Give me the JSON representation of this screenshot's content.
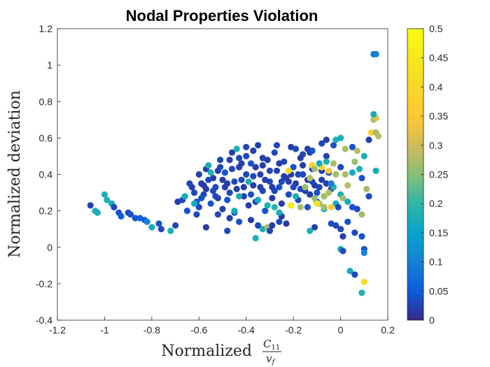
{
  "chart_data": {
    "type": "scatter",
    "title": "Nodal Properties Violation",
    "xlabel": "Normalized",
    "xlabel_fraction": {
      "numerator": "C",
      "numerator_sub": "11",
      "denominator": "v",
      "denominator_sub": "f"
    },
    "ylabel": "Normalized deviation",
    "xlim": [
      -1.2,
      0.2
    ],
    "ylim": [
      -0.4,
      1.2
    ],
    "xticks": [
      -1.2,
      -1,
      -0.8,
      -0.6,
      -0.4,
      -0.2,
      0,
      0.2
    ],
    "xtick_labels": [
      "-1.2",
      "-1",
      "-0.8",
      "-0.6",
      "-0.4",
      "-0.2",
      "0",
      "0.2"
    ],
    "yticks": [
      -0.4,
      -0.2,
      0,
      0.2,
      0.4,
      0.6,
      0.8,
      1,
      1.2
    ],
    "ytick_labels": [
      "-0.4",
      "-0.2",
      "0",
      "0.2",
      "0.4",
      "0.6",
      "0.8",
      "1",
      "1.2"
    ],
    "grid": false,
    "colorbar": {
      "range": [
        0,
        0.5
      ],
      "ticks": [
        0,
        0.05,
        0.1,
        0.15,
        0.2,
        0.25,
        0.3,
        0.35,
        0.4,
        0.45,
        0.5
      ],
      "tick_labels": [
        "0",
        "0.05",
        "0.1",
        "0.15",
        "0.2",
        "0.25",
        "0.3",
        "0.35",
        "0.4",
        "0.45",
        "0.5"
      ],
      "colormap": "parula"
    },
    "points": [
      [
        -1.06,
        0.23,
        0.02
      ],
      [
        -1.04,
        0.2,
        0.18
      ],
      [
        -1.03,
        0.19,
        0.17
      ],
      [
        -1.0,
        0.29,
        0.18
      ],
      [
        -0.99,
        0.26,
        0.18
      ],
      [
        -0.97,
        0.24,
        0.17
      ],
      [
        -0.96,
        0.22,
        0.03
      ],
      [
        -0.94,
        0.19,
        0.04
      ],
      [
        -0.93,
        0.17,
        0.05
      ],
      [
        -0.9,
        0.19,
        0.03
      ],
      [
        -0.89,
        0.18,
        0.04
      ],
      [
        -0.87,
        0.16,
        0.04
      ],
      [
        -0.85,
        0.16,
        0.06
      ],
      [
        -0.83,
        0.15,
        0.05
      ],
      [
        -0.82,
        0.14,
        0.1
      ],
      [
        -0.8,
        0.11,
        0.17
      ],
      [
        -0.77,
        0.13,
        0.04
      ],
      [
        -0.76,
        0.1,
        0.03
      ],
      [
        -0.72,
        0.09,
        0.18
      ],
      [
        -0.7,
        0.12,
        0.03
      ],
      [
        -0.69,
        0.25,
        0.02
      ],
      [
        -0.67,
        0.26,
        0.03
      ],
      [
        -0.66,
        0.28,
        0.17
      ],
      [
        -0.63,
        0.33,
        0.02
      ],
      [
        -0.62,
        0.3,
        0.03
      ],
      [
        -0.61,
        0.25,
        0.04
      ],
      [
        -0.6,
        0.22,
        0.03
      ],
      [
        -0.59,
        0.35,
        0.02
      ],
      [
        -0.58,
        0.29,
        0.03
      ],
      [
        -0.57,
        0.43,
        0.02
      ],
      [
        -0.56,
        0.45,
        0.18
      ],
      [
        -0.55,
        0.24,
        0.04
      ],
      [
        -0.54,
        0.38,
        0.02
      ],
      [
        -0.53,
        0.33,
        0.03
      ],
      [
        -0.52,
        0.27,
        0.02
      ],
      [
        -0.51,
        0.48,
        0.03
      ],
      [
        -0.5,
        0.21,
        0.02
      ],
      [
        -0.49,
        0.41,
        0.04
      ],
      [
        -0.48,
        0.35,
        0.02
      ],
      [
        -0.47,
        0.3,
        0.03
      ],
      [
        -0.46,
        0.52,
        0.02
      ],
      [
        -0.45,
        0.19,
        0.04
      ],
      [
        -0.44,
        0.54,
        0.18
      ],
      [
        -0.43,
        0.44,
        0.02
      ],
      [
        -0.42,
        0.37,
        0.03
      ],
      [
        -0.41,
        0.28,
        0.02
      ],
      [
        -0.4,
        0.5,
        0.03
      ],
      [
        -0.39,
        0.23,
        0.02
      ],
      [
        -0.38,
        0.46,
        0.04
      ],
      [
        -0.37,
        0.34,
        0.02
      ],
      [
        -0.36,
        0.25,
        0.03
      ],
      [
        -0.35,
        0.56,
        0.02
      ],
      [
        -0.34,
        0.4,
        0.02
      ],
      [
        -0.33,
        0.31,
        0.03
      ],
      [
        -0.32,
        0.2,
        0.04
      ],
      [
        -0.31,
        0.48,
        0.02
      ],
      [
        -0.3,
        0.36,
        0.03
      ],
      [
        -0.29,
        0.27,
        0.02
      ],
      [
        -0.28,
        0.52,
        0.03
      ],
      [
        -0.27,
        0.42,
        0.02
      ],
      [
        -0.26,
        0.33,
        0.04
      ],
      [
        -0.25,
        0.24,
        0.02
      ],
      [
        -0.24,
        0.47,
        0.03
      ],
      [
        -0.23,
        0.38,
        0.02
      ],
      [
        -0.22,
        0.29,
        0.03
      ],
      [
        -0.21,
        0.55,
        0.02
      ],
      [
        -0.2,
        0.44,
        0.04
      ],
      [
        -0.19,
        0.35,
        0.02
      ],
      [
        -0.18,
        0.26,
        0.03
      ],
      [
        -0.17,
        0.49,
        0.02
      ],
      [
        -0.16,
        0.4,
        0.03
      ],
      [
        -0.15,
        0.31,
        0.02
      ],
      [
        -0.14,
        0.22,
        0.04
      ],
      [
        -0.13,
        0.52,
        0.02
      ],
      [
        -0.12,
        0.43,
        0.03
      ],
      [
        -0.11,
        0.34,
        0.02
      ],
      [
        -0.1,
        0.25,
        0.03
      ],
      [
        -0.09,
        0.46,
        0.04
      ],
      [
        -0.08,
        0.37,
        0.02
      ],
      [
        -0.07,
        0.28,
        0.03
      ],
      [
        -0.06,
        0.5,
        0.02
      ],
      [
        -0.05,
        0.41,
        0.03
      ],
      [
        -0.04,
        0.32,
        0.02
      ],
      [
        -0.6,
        0.4,
        0.02
      ],
      [
        -0.56,
        0.37,
        0.03
      ],
      [
        -0.52,
        0.42,
        0.02
      ],
      [
        -0.48,
        0.26,
        0.04
      ],
      [
        -0.44,
        0.32,
        0.02
      ],
      [
        -0.4,
        0.4,
        0.03
      ],
      [
        -0.36,
        0.44,
        0.02
      ],
      [
        -0.32,
        0.37,
        0.02
      ],
      [
        -0.28,
        0.31,
        0.03
      ],
      [
        -0.24,
        0.39,
        0.02
      ],
      [
        -0.2,
        0.33,
        0.03
      ],
      [
        -0.16,
        0.45,
        0.02
      ],
      [
        -0.12,
        0.36,
        0.03
      ],
      [
        -0.08,
        0.42,
        0.02
      ],
      [
        -0.58,
        0.34,
        0.02
      ],
      [
        -0.54,
        0.31,
        0.03
      ],
      [
        -0.5,
        0.37,
        0.02
      ],
      [
        -0.46,
        0.43,
        0.03
      ],
      [
        -0.42,
        0.46,
        0.02
      ],
      [
        -0.38,
        0.29,
        0.04
      ],
      [
        -0.34,
        0.33,
        0.02
      ],
      [
        -0.3,
        0.42,
        0.03
      ],
      [
        -0.26,
        0.46,
        0.02
      ],
      [
        -0.22,
        0.36,
        0.02
      ],
      [
        -0.18,
        0.4,
        0.03
      ],
      [
        -0.14,
        0.37,
        0.02
      ],
      [
        -0.1,
        0.3,
        0.04
      ],
      [
        -0.06,
        0.35,
        0.02
      ],
      [
        -0.57,
        0.32,
        0.02
      ],
      [
        -0.53,
        0.28,
        0.03
      ],
      [
        -0.49,
        0.33,
        0.02
      ],
      [
        -0.45,
        0.36,
        0.03
      ],
      [
        -0.41,
        0.33,
        0.02
      ],
      [
        -0.37,
        0.39,
        0.03
      ],
      [
        -0.33,
        0.45,
        0.02
      ],
      [
        -0.29,
        0.33,
        0.02
      ],
      [
        -0.25,
        0.36,
        0.03
      ],
      [
        -0.21,
        0.4,
        0.02
      ],
      [
        -0.17,
        0.32,
        0.03
      ],
      [
        -0.13,
        0.29,
        0.02
      ],
      [
        -0.09,
        0.33,
        0.03
      ],
      [
        -0.52,
        0.18,
        0.03
      ],
      [
        -0.47,
        0.16,
        0.02
      ],
      [
        -0.43,
        0.14,
        0.04
      ],
      [
        -0.38,
        0.15,
        0.02
      ],
      [
        -0.35,
        0.12,
        0.03
      ],
      [
        -0.33,
        0.1,
        0.18
      ],
      [
        -0.31,
        0.11,
        0.27
      ],
      [
        -0.29,
        0.12,
        0.02
      ],
      [
        -0.26,
        0.14,
        0.03
      ],
      [
        -0.23,
        0.13,
        0.02
      ],
      [
        -0.36,
        0.05,
        0.18
      ],
      [
        -0.3,
        0.09,
        0.03
      ],
      [
        -0.25,
        0.17,
        0.02
      ],
      [
        -0.48,
        0.09,
        0.03
      ],
      [
        -0.57,
        0.11,
        0.02
      ],
      [
        -0.45,
        0.2,
        0.17
      ],
      [
        -0.43,
        0.28,
        0.18
      ],
      [
        -0.39,
        0.36,
        0.18
      ],
      [
        -0.35,
        0.26,
        0.17
      ],
      [
        -0.31,
        0.23,
        0.18
      ],
      [
        -0.28,
        0.22,
        0.19
      ],
      [
        -0.26,
        0.19,
        0.17
      ],
      [
        -0.21,
        0.23,
        0.17
      ],
      [
        -0.19,
        0.28,
        0.18
      ],
      [
        -0.17,
        0.22,
        0.27
      ],
      [
        -0.15,
        0.33,
        0.26
      ],
      [
        -0.13,
        0.38,
        0.28
      ],
      [
        -0.11,
        0.27,
        0.26
      ],
      [
        -0.09,
        0.24,
        0.27
      ],
      [
        -0.07,
        0.21,
        0.18
      ],
      [
        -0.05,
        0.3,
        0.28
      ],
      [
        -0.03,
        0.33,
        0.19
      ],
      [
        -0.02,
        0.24,
        0.17
      ],
      [
        -0.01,
        0.22,
        0.03
      ],
      [
        -0.22,
        0.42,
        0.41
      ],
      [
        -0.21,
        0.23,
        0.46
      ],
      [
        -0.12,
        0.45,
        0.38
      ],
      [
        -0.1,
        0.24,
        0.44
      ],
      [
        -0.08,
        0.44,
        0.41
      ],
      [
        -0.07,
        0.28,
        0.27
      ],
      [
        -0.05,
        0.42,
        0.36
      ],
      [
        -0.04,
        0.22,
        0.36
      ],
      [
        -0.03,
        0.46,
        0.27
      ],
      [
        -0.02,
        0.4,
        0.27
      ],
      [
        -0.11,
        0.43,
        0.27
      ],
      [
        -0.09,
        0.46,
        0.17
      ],
      [
        -0.06,
        0.47,
        0.18
      ],
      [
        -0.04,
        0.35,
        0.1
      ],
      [
        -0.16,
        0.51,
        0.03
      ],
      [
        -0.14,
        0.54,
        0.02
      ],
      [
        -0.12,
        0.53,
        0.04
      ],
      [
        -0.08,
        0.57,
        0.03
      ],
      [
        -0.06,
        0.59,
        0.02
      ],
      [
        -0.03,
        0.56,
        0.04
      ],
      [
        -0.02,
        0.59,
        0.18
      ],
      [
        0.0,
        0.6,
        0.17
      ],
      [
        0.02,
        0.54,
        0.27
      ],
      [
        0.05,
        0.55,
        0.04
      ],
      [
        0.07,
        0.53,
        0.28
      ],
      [
        0.1,
        0.5,
        0.18
      ],
      [
        0.0,
        0.44,
        0.03
      ],
      [
        0.02,
        0.4,
        0.27
      ],
      [
        0.03,
        0.34,
        0.28
      ],
      [
        0.05,
        0.41,
        0.17
      ],
      [
        0.06,
        0.47,
        0.26
      ],
      [
        0.08,
        0.43,
        0.18
      ],
      [
        0.09,
        0.38,
        0.04
      ],
      [
        0.11,
        0.32,
        0.27
      ],
      [
        0.12,
        0.28,
        0.03
      ],
      [
        0.0,
        0.29,
        0.18
      ],
      [
        0.01,
        0.27,
        0.26
      ],
      [
        0.03,
        0.25,
        0.17
      ],
      [
        0.05,
        0.22,
        0.04
      ],
      [
        0.07,
        0.21,
        0.03
      ],
      [
        0.09,
        0.18,
        0.27
      ],
      [
        -0.07,
        0.22,
        0.27
      ],
      [
        -0.04,
        0.13,
        0.04
      ],
      [
        -0.02,
        0.12,
        0.03
      ],
      [
        0.0,
        0.1,
        0.03
      ],
      [
        0.01,
        0.06,
        0.02
      ],
      [
        0.03,
        0.14,
        0.04
      ],
      [
        0.06,
        0.08,
        0.03
      ],
      [
        -0.11,
        0.11,
        0.02
      ],
      [
        -0.13,
        0.09,
        0.18
      ],
      [
        0.0,
        -0.01,
        0.17
      ],
      [
        0.01,
        -0.02,
        0.03
      ],
      [
        0.04,
        -0.13,
        0.17
      ],
      [
        0.06,
        -0.15,
        0.03
      ],
      [
        0.09,
        -0.25,
        0.18
      ],
      [
        0.1,
        -0.19,
        0.41
      ],
      [
        0.1,
        -0.01,
        0.04
      ],
      [
        0.1,
        -0.03,
        0.1
      ],
      [
        0.09,
        0.06,
        0.04
      ],
      [
        0.12,
        0.59,
        0.02
      ],
      [
        0.13,
        0.63,
        0.38
      ],
      [
        0.14,
        0.7,
        0.27
      ],
      [
        0.15,
        0.71,
        0.32
      ],
      [
        0.15,
        0.63,
        0.27
      ],
      [
        0.16,
        0.61,
        0.28
      ],
      [
        0.14,
        0.73,
        0.17
      ],
      [
        0.14,
        1.06,
        0.09
      ],
      [
        0.15,
        1.06,
        0.1
      ],
      [
        0.15,
        0.42,
        0.17
      ],
      [
        -0.33,
        0.49,
        0.02
      ],
      [
        -0.27,
        0.56,
        0.03
      ],
      [
        -0.19,
        0.54,
        0.03
      ],
      [
        -0.37,
        0.53,
        0.02
      ],
      [
        -0.4,
        0.55,
        0.03
      ],
      [
        -0.43,
        0.49,
        0.03
      ],
      [
        -0.47,
        0.48,
        0.02
      ],
      [
        -0.51,
        0.44,
        0.03
      ],
      [
        -0.55,
        0.41,
        0.18
      ],
      [
        -0.59,
        0.27,
        0.04
      ],
      [
        -0.62,
        0.24,
        0.17
      ],
      [
        -0.64,
        0.35,
        0.03
      ],
      [
        -0.65,
        0.2,
        0.04
      ],
      [
        -0.61,
        0.18,
        0.03
      ]
    ]
  }
}
